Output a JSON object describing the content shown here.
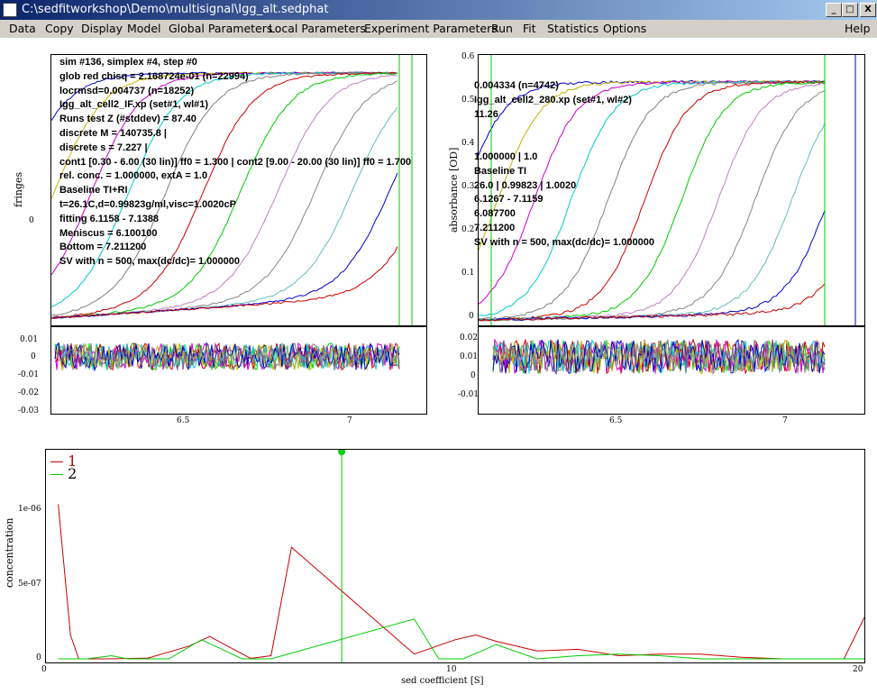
{
  "window": {
    "title": "C:\\sedfitworkshop\\Demo\\multisignal\\Igg_alt.sedphat",
    "buttons": {
      "minimize": "_",
      "maximize": "□",
      "close": "X"
    }
  },
  "menu": {
    "items": [
      "Data",
      "Copy",
      "Display",
      "Model",
      "Global Parameters",
      "Local Parameters",
      "Experiment Parameters",
      "Run",
      "Fit",
      "Statistics",
      "Options"
    ],
    "help": "Help"
  },
  "left_panel": {
    "ylabel": "fringes",
    "ytick_zero": "0",
    "overlay_lines": [
      "sim #136, simplex #4, step #0",
      "glob red chisq = 2.168724e-01 (n=22994)",
      "locrmsd=0.004737 (n=18252)",
      "Igg_alt_cell2_IF.xp (set#1, wl#1)",
      "Runs test Z (#stddev) = 87.40",
      "discrete M = 140735.8 |",
      "discrete s = 7.227 |",
      "cont1 [0.30 - 6.00 (30  lin)] ff0 = 1.300 | cont2 [9.00 - 20.00 (30  lin)] ff0 = 1.700",
      "rel. conc. = 1.000000, extA = 1.0",
      "Baseline TI+RI",
      "t=26.1C,d=0.99823g/ml,visc=1.0020cP",
      "fitting 6.1158 - 7.1388",
      "Meniscus = 6.100100",
      "Bottom = 7.211200",
      "SV with n = 500, max(dc/dc)= 1.000000"
    ],
    "residual_ticks": [
      "0.01",
      "0",
      "-0.01",
      "-0.02",
      "-0.03"
    ],
    "xticks": [
      "6.5",
      "7"
    ]
  },
  "right_panel": {
    "ylabel": "absorbance [OD]",
    "yticks": [
      "0.6",
      "0.5",
      "0.4",
      "0.3",
      "0.2",
      "0.1",
      "0"
    ],
    "overlay_lines": [
      "0.004334 (n=4742)",
      "Igg_alt_cell2_280.xp (set#1, wl#2)",
      "11.26",
      "",
      "",
      "1.000000 | 1.0",
      "Baseline TI",
      "26.0 | 0.99823 | 1.0020",
      "6.1267 - 7.1159",
      "6.087700",
      "7.211200",
      "SV with n = 500, max(dc/dc)= 1.000000"
    ],
    "residual_ticks": [
      "0.02",
      "0.01",
      "0",
      "-0.01"
    ],
    "xticks": [
      "6.5",
      "7"
    ]
  },
  "bottom_panel": {
    "ylabel": "concentration",
    "xlabel": "sed coefficient [S]",
    "yticks": [
      "1e-06",
      "5e-07",
      "0"
    ],
    "xticks": [
      "0",
      "10",
      "20"
    ],
    "legend": [
      {
        "label": "1",
        "color": "#cc0000"
      },
      {
        "label": "2",
        "color": "#00cc00"
      }
    ]
  },
  "chart_data": {
    "type": "line",
    "title": "",
    "xlabel": "sed coefficient [S]",
    "ylabel": "concentration",
    "xlim": [
      0,
      20
    ],
    "ylim": [
      0,
      1.3e-06
    ],
    "series": [
      {
        "name": "1",
        "color": "#cc0000",
        "x": [
          0.3,
          0.6,
          0.8,
          1.5,
          2.5,
          3.5,
          4.0,
          5.0,
          5.5,
          6.0,
          9.0,
          10.0,
          10.5,
          11.0,
          12.0,
          13.0,
          14.0,
          15.0,
          16.0,
          17.0,
          18.0,
          19.0,
          19.5,
          20.0
        ],
        "y": [
          9.7e-07,
          1.5e-07,
          0,
          0,
          5e-09,
          8e-08,
          1.4e-07,
          3e-09,
          2e-08,
          7e-07,
          3e-08,
          1.2e-07,
          1.5e-07,
          1.1e-07,
          5e-08,
          6e-08,
          2e-08,
          3e-08,
          3e-08,
          1e-08,
          0,
          0,
          0,
          2.6e-07
        ]
      },
      {
        "name": "2",
        "color": "#00cc00",
        "x": [
          0.3,
          1.0,
          1.6,
          2.0,
          3.0,
          3.8,
          4.8,
          5.5,
          9.0,
          9.6,
          10.2,
          11.0,
          12.0,
          13.0,
          14.0,
          15.0,
          16.0,
          17.0,
          19.0,
          20.0
        ],
        "y": [
          0,
          0,
          2e-08,
          0,
          0,
          1.2e-07,
          0,
          0,
          2.5e-07,
          0,
          0,
          9e-08,
          0,
          2e-08,
          3e-08,
          2e-08,
          0,
          0,
          0,
          0
        ]
      }
    ],
    "discrete_species": {
      "s": 7.227
    }
  }
}
